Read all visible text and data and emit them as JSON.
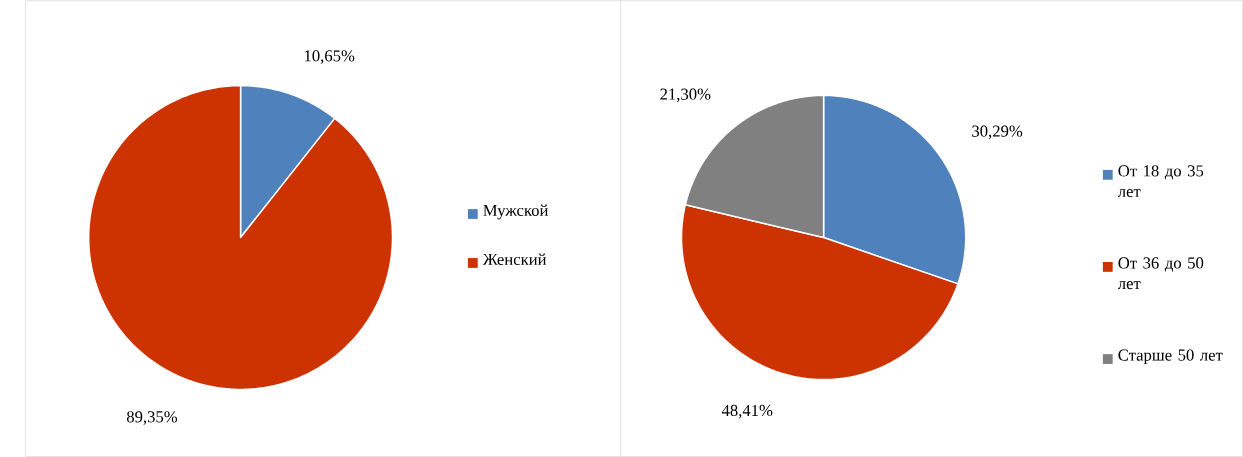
{
  "chart_data": [
    {
      "type": "pie",
      "categories": [
        "Мужской",
        "Женский"
      ],
      "values": [
        10.65,
        89.35
      ],
      "colors": [
        "#4f81bd",
        "#cc3300"
      ],
      "value_labels": [
        "10,65%",
        "89,35%"
      ],
      "legend": "right"
    },
    {
      "type": "pie",
      "categories": [
        "От 18 до 35 лет",
        "От 36 до 50 лет",
        "Старше 50 лет"
      ],
      "values": [
        30.29,
        48.41,
        21.3
      ],
      "colors": [
        "#4f81bd",
        "#cc3300",
        "#808080"
      ],
      "value_labels": [
        "30,29%",
        "48,41%",
        "21,30%"
      ],
      "legend": "right"
    }
  ]
}
